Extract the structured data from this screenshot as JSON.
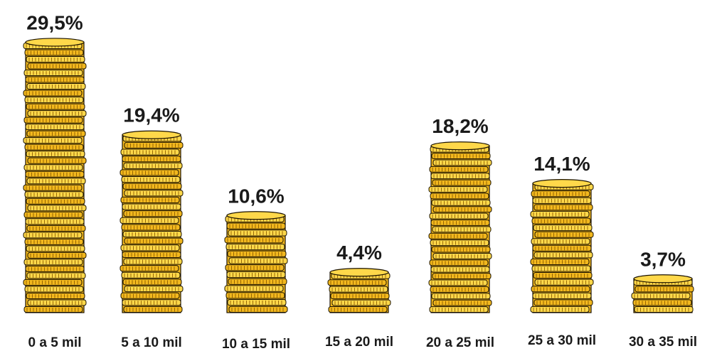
{
  "chart_data": {
    "type": "bar",
    "title": "",
    "xlabel": "",
    "ylabel": "",
    "categories": [
      "0 a 5 mil",
      "5 a 10 mil",
      "10 a 15 mil",
      "15 a 20 mil",
      "20 a 25 mil",
      "25 a 30 mil",
      "30 a 35 mil"
    ],
    "values": [
      29.5,
      19.4,
      10.6,
      4.4,
      18.2,
      14.1,
      3.7
    ],
    "value_labels": [
      "29,5%",
      "19,4%",
      "10,6%",
      "4,4%",
      "18,2%",
      "14,1%",
      "3,7%"
    ],
    "ylim": [
      0,
      30
    ],
    "grid": false,
    "legend": "none",
    "bar_style": "stacked-gold-coins",
    "colors": {
      "coin_fill": "#F2B81E",
      "coin_light": "#FFD84A",
      "coin_outline": "#1a1200",
      "coin_ridge": "#8A5A00",
      "label_text": "#1a1a1a"
    }
  }
}
